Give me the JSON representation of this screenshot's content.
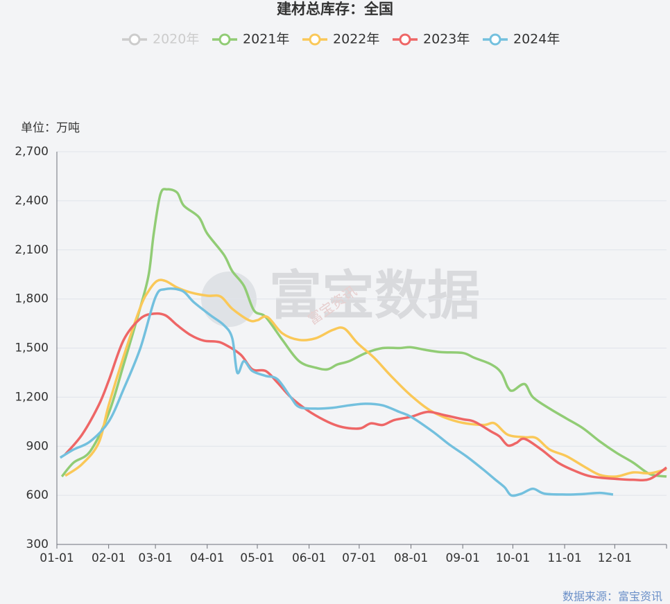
{
  "chart_data": {
    "type": "line",
    "title": "建材总库存：全国",
    "y_unit": "单位：万吨",
    "watermark": "富宝数据",
    "watermark_sub": "富宝资讯",
    "source": "数据来源：富宝资讯",
    "xlim": [
      0,
      365
    ],
    "xticks": [
      {
        "value": 0,
        "label": "01-01"
      },
      {
        "value": 31,
        "label": "02-01"
      },
      {
        "value": 59,
        "label": "03-01"
      },
      {
        "value": 90,
        "label": "04-01"
      },
      {
        "value": 120,
        "label": "05-01"
      },
      {
        "value": 151,
        "label": "06-01"
      },
      {
        "value": 181,
        "label": "07-01"
      },
      {
        "value": 212,
        "label": "08-01"
      },
      {
        "value": 243,
        "label": "09-01"
      },
      {
        "value": 273,
        "label": "10-01"
      },
      {
        "value": 304,
        "label": "11-01"
      },
      {
        "value": 334,
        "label": "12-01"
      }
    ],
    "ylim": [
      300,
      2700
    ],
    "yticks": [
      300,
      600,
      900,
      {
        "value": 1200,
        "label": "1,200"
      },
      {
        "value": 1500,
        "label": "1,500"
      },
      {
        "value": 1800,
        "label": "1,800"
      },
      {
        "value": 2100,
        "label": "2,100"
      },
      {
        "value": 2400,
        "label": "2,400"
      },
      {
        "value": 2700,
        "label": "2,700"
      }
    ],
    "grid": true,
    "series": [
      {
        "name": "2020年",
        "color": "#cccccc",
        "hidden": true,
        "x": [],
        "values": []
      },
      {
        "name": "2021年",
        "color": "#91cc75",
        "x": [
          3,
          10,
          20,
          31,
          40,
          50,
          55,
          58,
          62,
          66,
          72,
          76,
          85,
          90,
          100,
          105,
          112,
          118,
          125,
          135,
          145,
          155,
          162,
          168,
          175,
          185,
          195,
          205,
          212,
          220,
          230,
          243,
          250,
          260,
          266,
          270,
          273,
          280,
          285,
          295,
          305,
          315,
          325,
          335,
          345,
          355,
          365
        ],
        "values": [
          715,
          800,
          870,
          1100,
          1400,
          1750,
          1950,
          2200,
          2440,
          2470,
          2450,
          2370,
          2300,
          2200,
          2070,
          1970,
          1880,
          1730,
          1690,
          1550,
          1420,
          1380,
          1370,
          1400,
          1420,
          1470,
          1500,
          1500,
          1505,
          1490,
          1475,
          1470,
          1440,
          1400,
          1350,
          1260,
          1240,
          1280,
          1200,
          1130,
          1070,
          1010,
          930,
          860,
          800,
          730,
          715
        ]
      },
      {
        "name": "2022年",
        "color": "#fac858",
        "x": [
          5,
          15,
          25,
          31,
          40,
          50,
          55,
          60,
          65,
          72,
          80,
          90,
          98,
          105,
          115,
          120,
          126,
          135,
          145,
          155,
          165,
          172,
          180,
          190,
          200,
          212,
          225,
          240,
          255,
          262,
          270,
          280,
          287,
          295,
          305,
          315,
          325,
          335,
          345,
          355,
          365
        ],
        "values": [
          720,
          790,
          920,
          1150,
          1450,
          1750,
          1850,
          1910,
          1910,
          1870,
          1840,
          1820,
          1815,
          1740,
          1670,
          1670,
          1690,
          1590,
          1550,
          1560,
          1610,
          1620,
          1530,
          1440,
          1330,
          1210,
          1110,
          1050,
          1030,
          1040,
          970,
          955,
          950,
          880,
          840,
          780,
          725,
          715,
          740,
          735,
          760
        ]
      },
      {
        "name": "2023年",
        "color": "#ee6666",
        "x": [
          5,
          15,
          25,
          31,
          40,
          50,
          58,
          65,
          72,
          80,
          88,
          95,
          100,
          110,
          117,
          125,
          132,
          140,
          150,
          160,
          168,
          175,
          182,
          188,
          195,
          202,
          212,
          222,
          232,
          243,
          250,
          260,
          265,
          270,
          275,
          280,
          290,
          300,
          310,
          320,
          335,
          345,
          355,
          365
        ],
        "values": [
          850,
          970,
          1150,
          1300,
          1550,
          1680,
          1710,
          1700,
          1640,
          1580,
          1545,
          1540,
          1525,
          1460,
          1370,
          1360,
          1290,
          1200,
          1120,
          1060,
          1025,
          1010,
          1010,
          1040,
          1030,
          1060,
          1080,
          1110,
          1090,
          1065,
          1050,
          990,
          960,
          905,
          920,
          945,
          880,
          800,
          750,
          715,
          700,
          695,
          700,
          770
        ]
      },
      {
        "name": "2024年",
        "color": "#73c0de",
        "x": [
          2,
          10,
          20,
          31,
          40,
          50,
          59,
          65,
          75,
          82,
          92,
          100,
          105,
          108,
          112,
          117,
          125,
          132,
          140,
          145,
          155,
          165,
          175,
          185,
          195,
          205,
          212,
          225,
          235,
          245,
          255,
          262,
          268,
          272,
          278,
          285,
          292,
          305,
          315,
          325,
          333
        ],
        "values": [
          830,
          880,
          930,
          1050,
          1250,
          1500,
          1810,
          1860,
          1850,
          1780,
          1700,
          1640,
          1560,
          1350,
          1420,
          1360,
          1330,
          1310,
          1200,
          1140,
          1130,
          1135,
          1150,
          1160,
          1150,
          1110,
          1080,
          990,
          910,
          840,
          760,
          700,
          650,
          600,
          610,
          640,
          610,
          605,
          608,
          615,
          605
        ]
      }
    ]
  }
}
